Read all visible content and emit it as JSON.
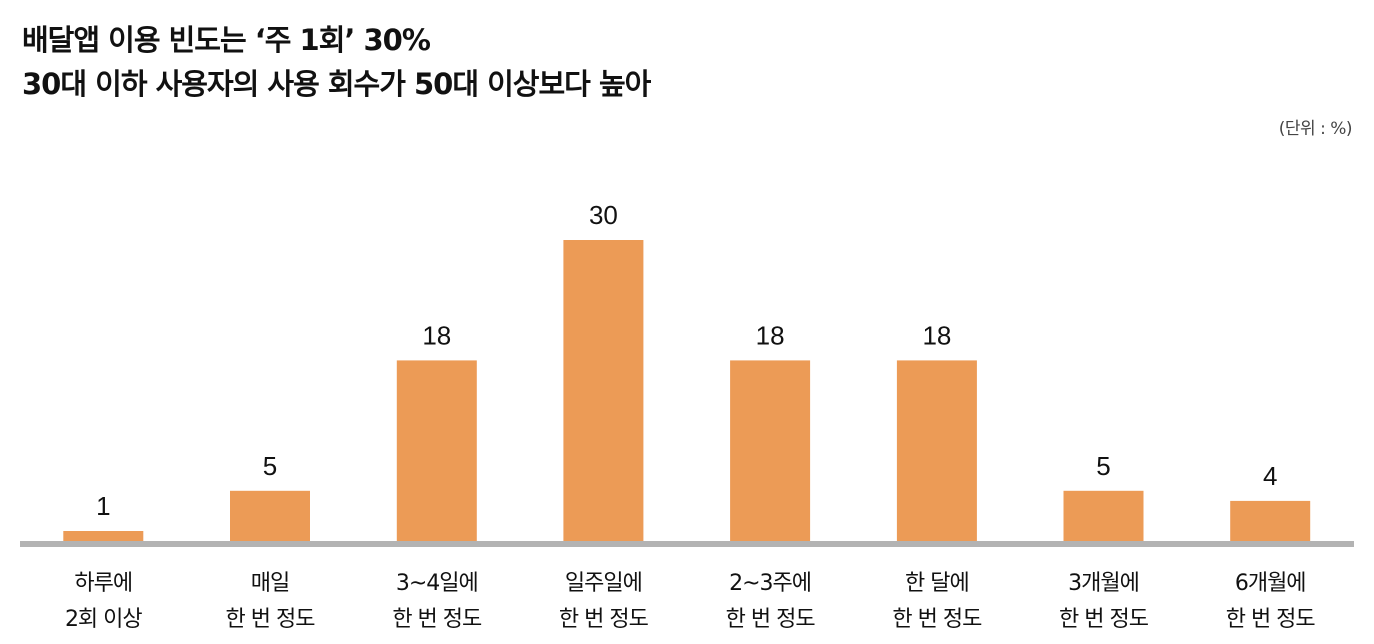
{
  "header": {
    "title_line1": "배달앱 이용 빈도는 ‘주 1회’ 30%",
    "title_line2": "30대 이하 사용자의 사용 회수가 50대 이상보다 높아",
    "unit": "(단위 : %)"
  },
  "colors": {
    "bar": "#ec9b56",
    "baseline": "#b3b3b3"
  },
  "chart_data": {
    "type": "bar",
    "title": "배달앱 이용 빈도는 ‘주 1회’ 30%",
    "subtitle": "30대 이하 사용자의 사용 회수가 50대 이상보다 높아",
    "unit": "(단위 : %)",
    "categories": [
      [
        "하루에",
        "2회 이상"
      ],
      [
        "매일",
        "한 번 정도"
      ],
      [
        "3~4일에",
        "한 번 정도"
      ],
      [
        "일주일에",
        "한 번 정도"
      ],
      [
        "2~3주에",
        "한 번 정도"
      ],
      [
        "한 달에",
        "한 번 정도"
      ],
      [
        "3개월에",
        "한 번 정도"
      ],
      [
        "6개월에",
        "한 번 정도"
      ]
    ],
    "values": [
      1,
      5,
      18,
      30,
      18,
      18,
      5,
      4
    ],
    "ylim": [
      0,
      30
    ],
    "grid": false,
    "legend": "none"
  }
}
